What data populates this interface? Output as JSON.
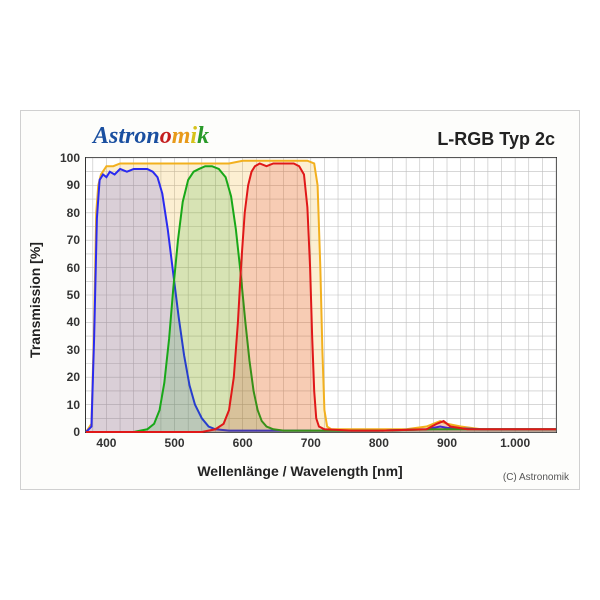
{
  "brand": {
    "text": "Astronomik",
    "fontsize": 24,
    "colors": [
      "#1a4fa0",
      "#1a4fa0",
      "#1a4fa0",
      "#1a4fa0",
      "#1a4fa0",
      "#1a4fa0",
      "#c41e1e",
      "#e89a1a",
      "#d6c21a",
      "#2a9a2a",
      "#1a4fa0",
      "#6a2a8a"
    ]
  },
  "title": {
    "text": "L-RGB Typ 2c",
    "fontsize": 18
  },
  "copyright": "(C) Astronomik",
  "axes": {
    "xlabel": "Wellenlänge / Wavelength [nm]",
    "ylabel": "Transmission [%]",
    "label_fontsize": 14,
    "xlim": [
      370,
      1060
    ],
    "ylim": [
      0,
      100
    ],
    "xticks": [
      400,
      500,
      600,
      700,
      800,
      900,
      1000
    ],
    "xtick_labels": [
      "400",
      "500",
      "600",
      "700",
      "800",
      "900",
      "1.000"
    ],
    "yticks": [
      0,
      10,
      20,
      30,
      40,
      50,
      60,
      70,
      80,
      90,
      100
    ],
    "tick_fontsize": 12,
    "grid_color": "#bfbfbf",
    "grid_minor_step_x": 20,
    "grid_minor_step_y": 5,
    "border_color": "#333333"
  },
  "series": {
    "L": {
      "color": "#f2b01e",
      "fill": "#f2b01e",
      "fill_opacity": 0.2,
      "line_width": 2,
      "data": [
        [
          370,
          0
        ],
        [
          378,
          3
        ],
        [
          382,
          40
        ],
        [
          385,
          80
        ],
        [
          388,
          90
        ],
        [
          392,
          94
        ],
        [
          400,
          97
        ],
        [
          410,
          97
        ],
        [
          420,
          98
        ],
        [
          440,
          98
        ],
        [
          460,
          98
        ],
        [
          480,
          98
        ],
        [
          500,
          98
        ],
        [
          520,
          98
        ],
        [
          540,
          98
        ],
        [
          560,
          98
        ],
        [
          580,
          98
        ],
        [
          600,
          99
        ],
        [
          620,
          99
        ],
        [
          640,
          99
        ],
        [
          660,
          99
        ],
        [
          680,
          99
        ],
        [
          695,
          99
        ],
        [
          705,
          98
        ],
        [
          710,
          90
        ],
        [
          714,
          60
        ],
        [
          717,
          30
        ],
        [
          720,
          8
        ],
        [
          724,
          2
        ],
        [
          730,
          1
        ],
        [
          760,
          1
        ],
        [
          800,
          1
        ],
        [
          840,
          1
        ],
        [
          870,
          2
        ],
        [
          880,
          3
        ],
        [
          890,
          4
        ],
        [
          900,
          3
        ],
        [
          920,
          2
        ],
        [
          950,
          1
        ],
        [
          1000,
          1
        ],
        [
          1050,
          1
        ],
        [
          1060,
          1
        ]
      ]
    },
    "B": {
      "color": "#2a2af0",
      "fill": "#2a2af0",
      "fill_opacity": 0.16,
      "line_width": 2,
      "data": [
        [
          370,
          0
        ],
        [
          378,
          2
        ],
        [
          382,
          35
        ],
        [
          386,
          78
        ],
        [
          390,
          92
        ],
        [
          395,
          94
        ],
        [
          400,
          93
        ],
        [
          405,
          95
        ],
        [
          412,
          94
        ],
        [
          420,
          96
        ],
        [
          430,
          95
        ],
        [
          440,
          96
        ],
        [
          450,
          96
        ],
        [
          460,
          96
        ],
        [
          468,
          95
        ],
        [
          475,
          93
        ],
        [
          482,
          87
        ],
        [
          490,
          74
        ],
        [
          498,
          58
        ],
        [
          506,
          42
        ],
        [
          514,
          28
        ],
        [
          522,
          17
        ],
        [
          530,
          10
        ],
        [
          540,
          5
        ],
        [
          550,
          2
        ],
        [
          560,
          1
        ],
        [
          580,
          0.5
        ],
        [
          620,
          0.5
        ],
        [
          700,
          0.5
        ],
        [
          800,
          0.5
        ],
        [
          870,
          1
        ],
        [
          890,
          2
        ],
        [
          900,
          1.5
        ],
        [
          950,
          1
        ],
        [
          1000,
          1
        ],
        [
          1060,
          1
        ]
      ]
    },
    "G": {
      "color": "#18a818",
      "fill": "#18a818",
      "fill_opacity": 0.16,
      "line_width": 2,
      "data": [
        [
          370,
          0
        ],
        [
          440,
          0
        ],
        [
          460,
          1
        ],
        [
          470,
          3
        ],
        [
          478,
          8
        ],
        [
          485,
          18
        ],
        [
          492,
          34
        ],
        [
          498,
          52
        ],
        [
          505,
          70
        ],
        [
          512,
          84
        ],
        [
          520,
          92
        ],
        [
          528,
          95
        ],
        [
          536,
          96
        ],
        [
          545,
          97
        ],
        [
          555,
          97
        ],
        [
          565,
          96
        ],
        [
          575,
          93
        ],
        [
          583,
          86
        ],
        [
          590,
          74
        ],
        [
          597,
          58
        ],
        [
          604,
          40
        ],
        [
          610,
          26
        ],
        [
          616,
          15
        ],
        [
          622,
          8
        ],
        [
          628,
          4
        ],
        [
          635,
          2
        ],
        [
          645,
          1
        ],
        [
          660,
          0.5
        ],
        [
          700,
          0.5
        ],
        [
          800,
          0.5
        ],
        [
          880,
          1
        ],
        [
          900,
          1
        ],
        [
          1000,
          1
        ],
        [
          1060,
          1
        ]
      ]
    },
    "R": {
      "color": "#e01818",
      "fill": "#e01818",
      "fill_opacity": 0.16,
      "line_width": 2,
      "data": [
        [
          370,
          0
        ],
        [
          540,
          0
        ],
        [
          560,
          1
        ],
        [
          572,
          3
        ],
        [
          580,
          8
        ],
        [
          587,
          20
        ],
        [
          593,
          40
        ],
        [
          598,
          62
        ],
        [
          603,
          80
        ],
        [
          608,
          90
        ],
        [
          613,
          95
        ],
        [
          618,
          97
        ],
        [
          625,
          98
        ],
        [
          635,
          97
        ],
        [
          645,
          98
        ],
        [
          655,
          98
        ],
        [
          665,
          98
        ],
        [
          675,
          98
        ],
        [
          683,
          97
        ],
        [
          690,
          94
        ],
        [
          695,
          82
        ],
        [
          699,
          60
        ],
        [
          702,
          35
        ],
        [
          705,
          15
        ],
        [
          708,
          5
        ],
        [
          712,
          2
        ],
        [
          720,
          1
        ],
        [
          760,
          0.5
        ],
        [
          800,
          0.5
        ],
        [
          870,
          1
        ],
        [
          885,
          3
        ],
        [
          895,
          4
        ],
        [
          905,
          2
        ],
        [
          930,
          1
        ],
        [
          1000,
          1
        ],
        [
          1060,
          1
        ]
      ]
    }
  },
  "series_order": [
    "L",
    "B",
    "G",
    "R"
  ]
}
